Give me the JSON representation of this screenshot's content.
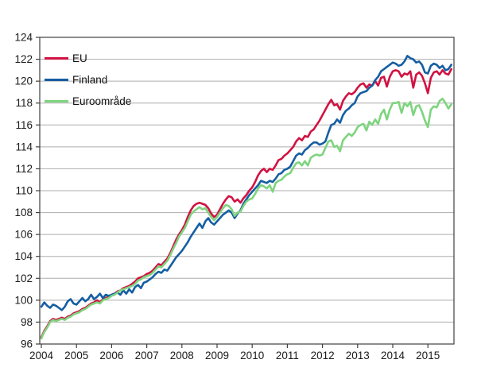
{
  "chart_data": {
    "type": "line",
    "title": "",
    "x_start": "2004-01",
    "x_end": "2015-09",
    "x_tick_labels": [
      "2004",
      "2005",
      "2006",
      "2007",
      "2008",
      "2009",
      "2010",
      "2011",
      "2012",
      "2013",
      "2014",
      "2015"
    ],
    "y_ticks": [
      96,
      98,
      100,
      102,
      104,
      106,
      108,
      110,
      112,
      114,
      116,
      118,
      120,
      122,
      124
    ],
    "ylim": [
      96,
      124
    ],
    "grid": "horizontal-only",
    "legend_position": "top-left-inside",
    "axis_color": "#3f3f3f",
    "grid_color": "#aeaeae",
    "tick_label_color": "#1a1a1a",
    "series": [
      {
        "name": "EU",
        "color": "#d11242",
        "values": [
          96.6,
          97.2,
          97.6,
          98.1,
          98.3,
          98.2,
          98.3,
          98.4,
          98.3,
          98.5,
          98.6,
          98.8,
          98.9,
          99.0,
          99.2,
          99.3,
          99.5,
          99.7,
          99.8,
          100.0,
          99.8,
          100.1,
          100.2,
          100.3,
          100.5,
          100.6,
          100.8,
          100.9,
          101.1,
          101.2,
          101.3,
          101.5,
          101.7,
          102.0,
          102.1,
          102.2,
          102.4,
          102.5,
          102.7,
          103.0,
          103.3,
          103.2,
          103.5,
          103.8,
          104.3,
          104.9,
          105.5,
          106.0,
          106.4,
          106.9,
          107.6,
          108.2,
          108.6,
          108.8,
          108.9,
          108.8,
          108.7,
          108.4,
          107.9,
          107.6,
          107.8,
          108.3,
          108.8,
          109.2,
          109.5,
          109.4,
          109.0,
          109.2,
          108.9,
          109.3,
          109.6,
          110.0,
          110.3,
          110.8,
          111.4,
          111.8,
          112.0,
          111.7,
          112.0,
          111.9,
          112.3,
          112.8,
          112.9,
          113.2,
          113.4,
          113.7,
          114.0,
          114.5,
          114.8,
          114.6,
          115.0,
          114.9,
          115.4,
          115.6,
          116.0,
          116.4,
          116.9,
          117.4,
          117.9,
          118.3,
          117.8,
          117.9,
          117.4,
          118.2,
          118.6,
          118.9,
          118.8,
          119.0,
          119.4,
          119.7,
          119.8,
          119.4,
          119.7,
          119.6,
          120.0,
          119.6,
          120.3,
          120.4,
          119.5,
          120.4,
          120.9,
          121.0,
          120.9,
          120.4,
          120.7,
          120.6,
          120.9,
          119.4,
          120.6,
          120.8,
          120.5,
          119.8,
          118.9,
          120.3,
          120.8,
          120.9,
          120.6,
          121.0,
          120.7,
          120.6,
          121.1
        ]
      },
      {
        "name": "Finland",
        "color": "#155ea2",
        "values": [
          99.4,
          99.8,
          99.5,
          99.3,
          99.6,
          99.5,
          99.3,
          99.1,
          99.4,
          99.9,
          100.1,
          99.7,
          99.6,
          99.9,
          100.2,
          99.9,
          100.1,
          100.5,
          100.1,
          100.3,
          100.6,
          100.2,
          100.5,
          100.4,
          100.5,
          100.6,
          100.7,
          100.5,
          100.9,
          100.6,
          101.0,
          100.7,
          101.2,
          101.4,
          101.1,
          101.6,
          101.7,
          101.9,
          102.1,
          102.4,
          102.6,
          102.5,
          102.8,
          102.7,
          103.1,
          103.5,
          103.9,
          104.2,
          104.5,
          104.9,
          105.3,
          105.8,
          106.2,
          106.6,
          107.0,
          106.6,
          107.2,
          107.5,
          107.1,
          106.9,
          107.2,
          107.5,
          107.8,
          108.0,
          108.2,
          108.0,
          107.5,
          107.9,
          108.2,
          108.8,
          109.2,
          109.6,
          109.9,
          110.2,
          110.5,
          110.9,
          110.8,
          110.7,
          110.9,
          110.8,
          111.1,
          111.5,
          111.6,
          111.9,
          112.0,
          112.2,
          112.7,
          113.2,
          113.4,
          113.3,
          113.7,
          113.9,
          114.2,
          114.4,
          114.4,
          114.2,
          114.3,
          114.5,
          115.3,
          116.0,
          116.1,
          116.5,
          116.2,
          116.9,
          117.3,
          117.5,
          117.8,
          118.0,
          118.6,
          118.9,
          119.0,
          119.1,
          119.4,
          119.6,
          120.1,
          120.4,
          120.9,
          121.1,
          121.3,
          121.5,
          121.7,
          121.6,
          121.4,
          121.5,
          121.8,
          122.3,
          122.1,
          122.0,
          121.7,
          121.8,
          121.5,
          120.8,
          120.7,
          121.4,
          121.6,
          121.5,
          121.2,
          121.4,
          121.0,
          121.1,
          121.5
        ]
      },
      {
        "name": "Euroområde",
        "color": "#7ed47f",
        "values": [
          96.5,
          97.1,
          97.5,
          98.0,
          98.2,
          98.1,
          98.2,
          98.3,
          98.2,
          98.4,
          98.5,
          98.7,
          98.8,
          98.9,
          99.1,
          99.2,
          99.4,
          99.6,
          99.7,
          99.8,
          99.7,
          100.0,
          100.1,
          100.2,
          100.4,
          100.5,
          100.7,
          100.9,
          101.0,
          101.1,
          101.2,
          101.3,
          101.5,
          101.8,
          101.9,
          102.1,
          102.2,
          102.3,
          102.5,
          102.8,
          103.1,
          103.0,
          103.3,
          103.6,
          104.1,
          104.7,
          105.2,
          105.8,
          106.2,
          106.6,
          107.2,
          107.8,
          108.1,
          108.3,
          108.5,
          108.3,
          108.4,
          108.0,
          107.6,
          107.3,
          107.6,
          108.0,
          108.4,
          108.7,
          108.6,
          108.3,
          107.7,
          108.0,
          108.1,
          108.6,
          109.0,
          109.2,
          109.3,
          109.7,
          110.2,
          110.5,
          110.4,
          110.2,
          110.5,
          109.9,
          110.7,
          110.9,
          111.0,
          111.3,
          111.5,
          111.6,
          112.1,
          112.5,
          112.6,
          112.3,
          112.7,
          112.3,
          113.0,
          113.2,
          113.3,
          113.2,
          113.3,
          113.9,
          114.5,
          114.6,
          114.0,
          114.1,
          113.6,
          114.6,
          114.9,
          115.2,
          115.0,
          115.3,
          115.8,
          116.0,
          116.1,
          115.5,
          116.3,
          116.0,
          116.5,
          116.1,
          117.0,
          117.4,
          116.5,
          117.4,
          118.0,
          118.0,
          118.1,
          117.1,
          118.0,
          117.7,
          118.1,
          116.9,
          117.7,
          117.8,
          117.2,
          116.4,
          115.8,
          117.4,
          117.7,
          117.6,
          118.2,
          118.4,
          118.0,
          117.5,
          117.9
        ]
      }
    ]
  }
}
